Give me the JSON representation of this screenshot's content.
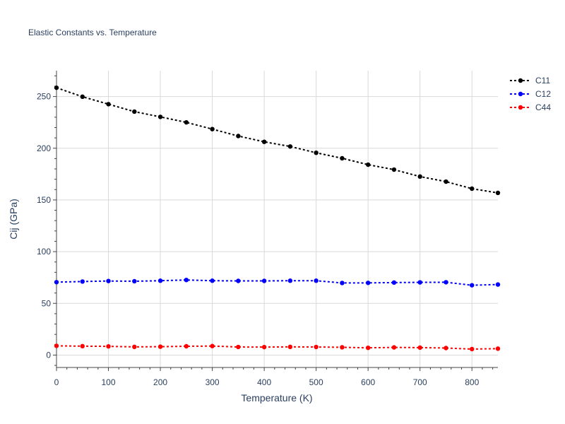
{
  "chart_data": {
    "type": "line",
    "title": "Elastic Constants vs. Temperature",
    "xlabel": "Temperature (K)",
    "ylabel": "Cij (GPa)",
    "xlim": [
      0,
      850
    ],
    "ylim": [
      -12,
      275
    ],
    "xticks": [
      0,
      100,
      200,
      300,
      400,
      500,
      600,
      700,
      800
    ],
    "yticks": [
      0,
      50,
      100,
      150,
      200,
      250
    ],
    "grid": true,
    "legend_position": "top-right",
    "x": [
      0,
      50,
      100,
      150,
      200,
      250,
      300,
      350,
      400,
      450,
      500,
      550,
      600,
      650,
      700,
      750,
      800,
      850
    ],
    "series": [
      {
        "name": "C11",
        "color": "#000000",
        "values": [
          258.5,
          249.8,
          242.6,
          235.4,
          230.3,
          225.0,
          218.5,
          211.8,
          206.2,
          201.7,
          195.6,
          190.3,
          184.1,
          179.3,
          172.6,
          167.7,
          160.9,
          156.8
        ]
      },
      {
        "name": "C12",
        "color": "#0000ff",
        "values": [
          70.5,
          71.1,
          71.6,
          71.4,
          71.9,
          72.6,
          71.9,
          71.7,
          71.7,
          71.9,
          71.9,
          69.7,
          69.8,
          70.1,
          70.3,
          70.4,
          67.5,
          68.2
        ]
      },
      {
        "name": "C44",
        "color": "#ff0000",
        "values": [
          8.9,
          8.6,
          8.4,
          7.9,
          8.1,
          8.5,
          8.7,
          7.8,
          7.7,
          7.9,
          7.8,
          7.5,
          7.0,
          7.4,
          7.2,
          6.8,
          5.8,
          6.2
        ]
      }
    ]
  }
}
